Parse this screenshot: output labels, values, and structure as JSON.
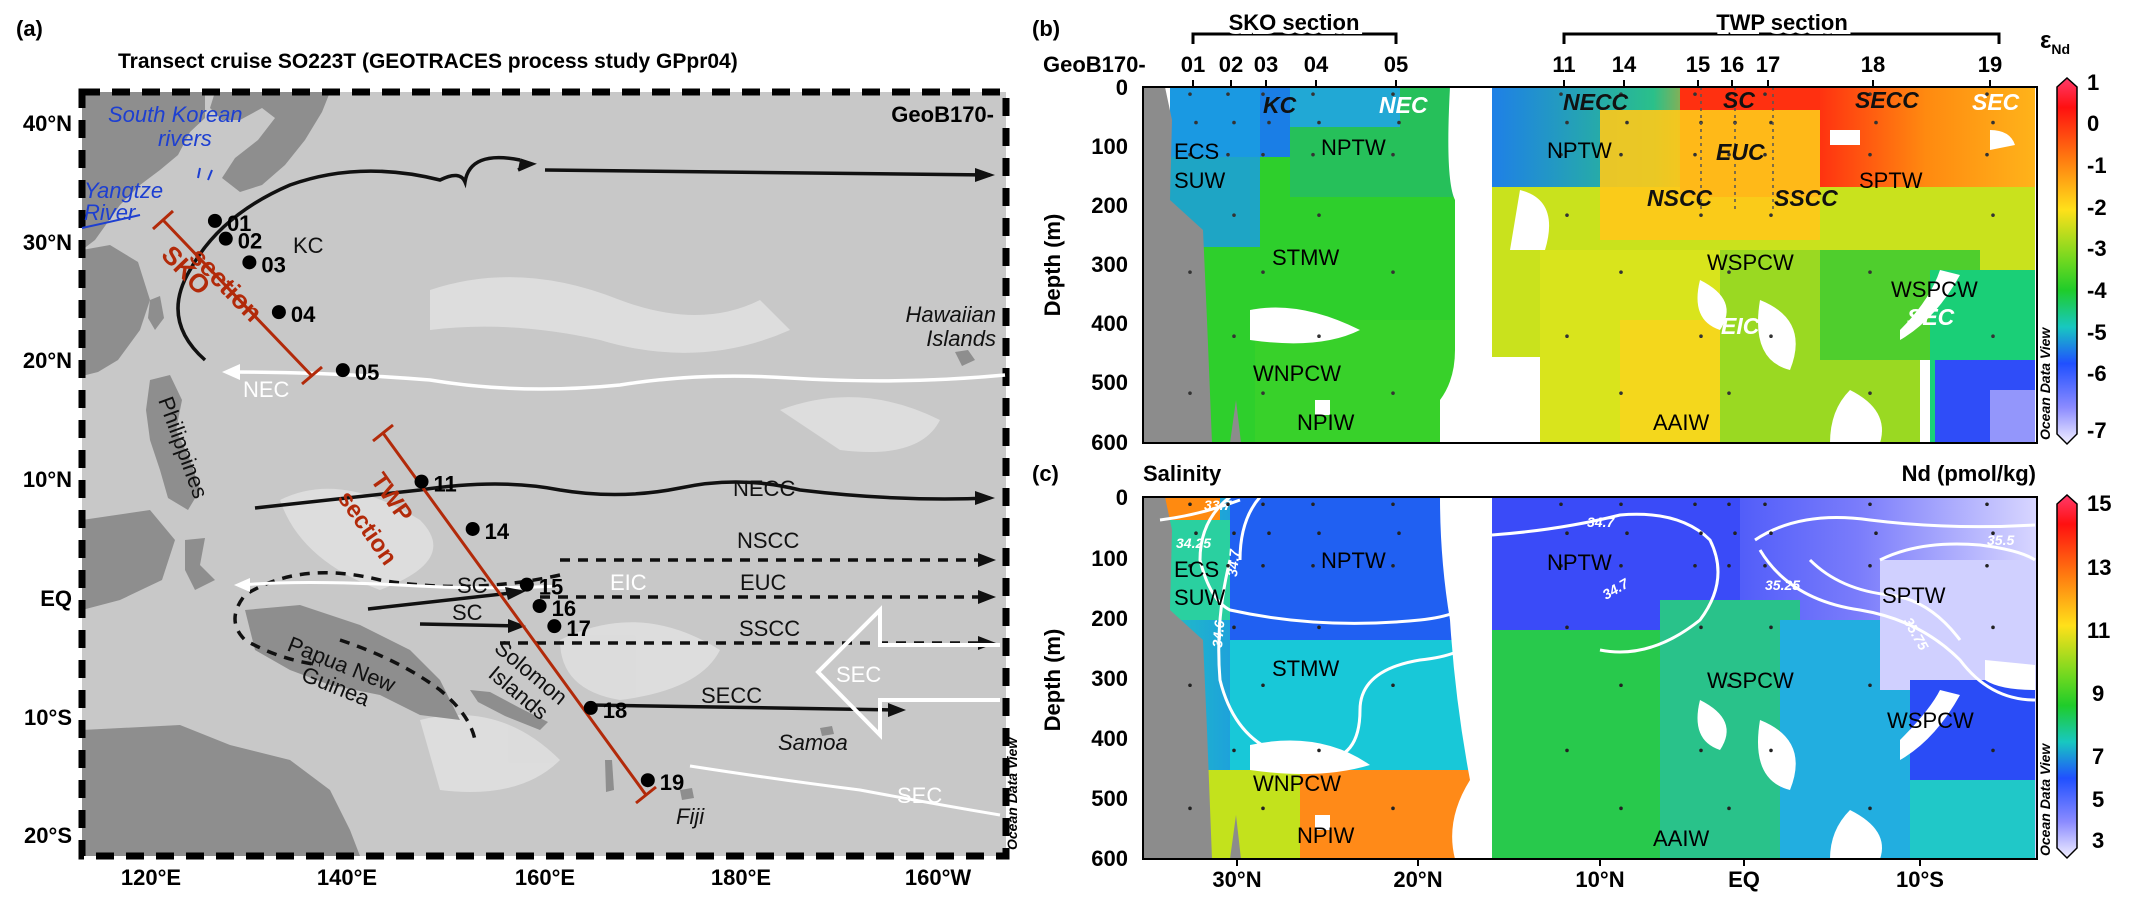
{
  "panel_a": {
    "label": "(a)",
    "title": "Transect cruise SO223T (GEOTRACES process study GPpr04)",
    "corner_label": "GeoB170-",
    "lat_ticks": [
      "40°N",
      "30°N",
      "20°N",
      "10°N",
      "EQ",
      "10°S",
      "20°S"
    ],
    "lon_ticks": [
      "120°E",
      "140°E",
      "160°E",
      "180°E",
      "160°W"
    ],
    "places": {
      "korea_rivers": [
        "South Korean",
        "rivers"
      ],
      "yangtze": [
        "Yangtze",
        "River"
      ],
      "hawaii": [
        "Hawaiian",
        "Islands"
      ],
      "philippines": "Philippines",
      "png": [
        "Papua New",
        "Guinea"
      ],
      "solomon": [
        "Solomon",
        "Islands"
      ],
      "samoa": "Samoa",
      "fiji": "Fiji"
    },
    "sections": {
      "sko": [
        "SKO",
        "section"
      ],
      "twp": [
        "TWP",
        "section"
      ]
    },
    "currents": {
      "kc": "KC",
      "nec": "NEC",
      "necc": "NECC",
      "nscc": "NSCC",
      "eic": "EIC",
      "euc": "EUC",
      "sc1": "SC",
      "sc2": "SC",
      "sscc": "SSCC",
      "secc": "SECC",
      "sec1": "SEC",
      "sec2": "SEC"
    },
    "stations": [
      {
        "id": "01",
        "lon": 126.5,
        "lat": 32.5
      },
      {
        "id": "02",
        "lon": 127.6,
        "lat": 31.0
      },
      {
        "id": "03",
        "lon": 130.0,
        "lat": 29.0
      },
      {
        "id": "04",
        "lon": 133.0,
        "lat": 24.8
      },
      {
        "id": "05",
        "lon": 139.5,
        "lat": 19.9
      },
      {
        "id": "11",
        "lon": 147.5,
        "lat": 10.5
      },
      {
        "id": "14",
        "lon": 152.7,
        "lat": 6.5
      },
      {
        "id": "15",
        "lon": 158.2,
        "lat": 1.8
      },
      {
        "id": "16",
        "lon": 159.5,
        "lat": 0.0
      },
      {
        "id": "17",
        "lon": 161.0,
        "lat": -1.7
      },
      {
        "id": "18",
        "lon": 164.7,
        "lat": -8.6
      },
      {
        "id": "19",
        "lon": 170.5,
        "lat": -14.7
      }
    ],
    "odv": "Ocean Data View"
  },
  "panel_b": {
    "label": "(b)",
    "section_labels": {
      "sko": "SKO section",
      "twp": "TWP section"
    },
    "station_prefix": "GeoB170-",
    "station_ticks": [
      "01",
      "02",
      "03",
      "04",
      "05",
      "11",
      "14",
      "15",
      "16",
      "17",
      "18",
      "19"
    ],
    "ylabel": "Depth (m)",
    "depth_ticks": [
      "0",
      "100",
      "200",
      "300",
      "400",
      "500",
      "600"
    ],
    "cbar_title": "ε",
    "cbar_title_sub": "Nd",
    "cbar_ticks": [
      "1",
      "0",
      "-1",
      "-2",
      "-3",
      "-4",
      "-5",
      "-6",
      "-7"
    ],
    "water_masses": {
      "ecs": "ECS",
      "suw": "SUW",
      "nptw1": "NPTW",
      "nptw2": "NPTW",
      "stmw": "STMW",
      "wnpcw": "WNPCW",
      "npiw": "NPIW",
      "wspcw1": "WSPCW",
      "wspcw2": "WSPCW",
      "sptw": "SPTW",
      "aaiw": "AAIW"
    },
    "currents": {
      "kc": "KC",
      "nec": "NEC",
      "necc": "NECC",
      "sc": "SC",
      "secc": "SECC",
      "sec1": "SEC",
      "euc": "EUC",
      "nscc": "NSCC",
      "sscc": "SSCC",
      "eic": "EIC",
      "sec2": "SEC"
    },
    "odv": "Ocean Data View"
  },
  "panel_c": {
    "label": "(c)",
    "left_title": "Salinity",
    "right_title": "Nd (pmol/kg)",
    "ylabel": "Depth (m)",
    "depth_ticks": [
      "0",
      "100",
      "200",
      "300",
      "400",
      "500",
      "600"
    ],
    "lat_ticks": [
      "30°N",
      "20°N",
      "10°N",
      "EQ",
      "10°S"
    ],
    "cbar_ticks": [
      "15",
      "13",
      "11",
      "9",
      "7",
      "5",
      "3"
    ],
    "contours": [
      "33.7",
      "34.25",
      "34.7",
      "34.6",
      "34.7",
      "34.7",
      "35.25",
      "35.5",
      "35.75"
    ],
    "water_masses": {
      "ecs": "ECS",
      "suw": "SUW",
      "nptw1": "NPTW",
      "nptw2": "NPTW",
      "stmw": "STMW",
      "wnpcw": "WNPCW",
      "npiw": "NPIW",
      "wspcw1": "WSPCW",
      "wspcw2": "WSPCW",
      "sptw": "SPTW",
      "aaiw": "AAIW"
    },
    "odv": "Ocean Data View"
  },
  "colors": {
    "section": "#b22a0a",
    "station_tick": "#000000",
    "ocean_bg": "#c9c9c9",
    "land": "#8c8c8c",
    "river_text": "#1d3fd1"
  }
}
